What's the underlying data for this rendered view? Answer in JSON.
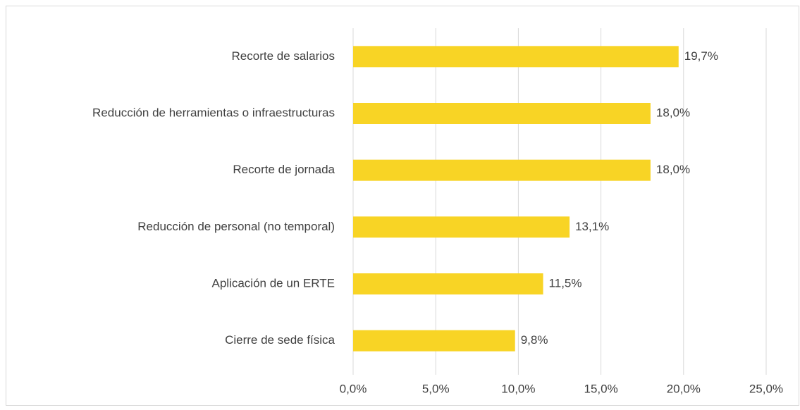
{
  "chart_data": {
    "type": "hbar",
    "categories": [
      "Recorte de salarios",
      "Reducción de herramientas o infraestructuras",
      "Recorte de jornada",
      "Reducción de personal (no temporal)",
      "Aplicación de un ERTE",
      "Cierre de sede física"
    ],
    "values": [
      19.7,
      18.0,
      18.0,
      13.1,
      11.5,
      9.8
    ],
    "value_labels": [
      "19,7%",
      "18,0%",
      "18,0%",
      "13,1%",
      "11,5%",
      "9,8%"
    ],
    "color": "#f8d425",
    "xlim": [
      0,
      25
    ],
    "xticks": [
      {
        "value": 0,
        "label": "0,0%"
      },
      {
        "value": 5,
        "label": "5,0%"
      },
      {
        "value": 10,
        "label": "10,0%"
      },
      {
        "value": 15,
        "label": "15,0%"
      },
      {
        "value": 20,
        "label": "20,0%"
      },
      {
        "value": 25,
        "label": "25,0%"
      }
    ],
    "grid": true
  }
}
